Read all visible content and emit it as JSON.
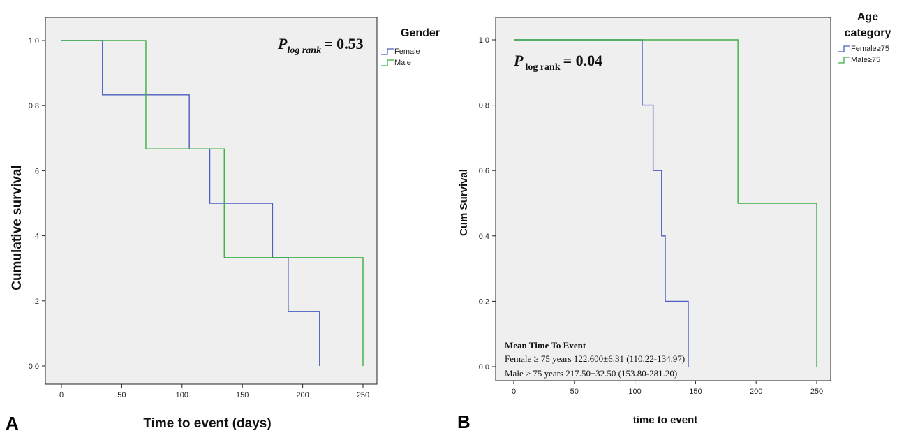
{
  "chart_data": [
    {
      "panel_label": "A",
      "type": "line",
      "step": true,
      "xlabel": "Time to event (days)",
      "ylabel": "Cumulative  survival",
      "xlim": [
        0,
        250
      ],
      "ylim": [
        0,
        1
      ],
      "x_ticks": [
        "0",
        "50",
        "100",
        "150",
        "200",
        "250"
      ],
      "y_ticks": [
        "0.0",
        ".2",
        ".4",
        ".6",
        "0.8",
        "1.0"
      ],
      "p_label": "P",
      "p_subscript": "log rank",
      "p_value": "= 0.53",
      "legend_title": "Gender",
      "legend_placement": "right",
      "grid": false,
      "series": [
        {
          "name": "Female",
          "color": "#4a5fbf",
          "x": [
            0,
            34,
            106,
            123,
            175,
            188,
            214
          ],
          "y": [
            1.0,
            0.833,
            0.667,
            0.5,
            0.333,
            0.167,
            0.0
          ]
        },
        {
          "name": "Male",
          "color": "#3cb043",
          "x": [
            0,
            70,
            135,
            250
          ],
          "y": [
            1.0,
            0.667,
            0.333,
            0.0
          ]
        }
      ]
    },
    {
      "panel_label": "B",
      "type": "line",
      "step": true,
      "xlabel": "time to event",
      "ylabel": "Cum Survival",
      "xlim": [
        0,
        250
      ],
      "ylim": [
        0,
        1
      ],
      "x_ticks": [
        "0",
        "50",
        "100",
        "150",
        "200",
        "250"
      ],
      "y_ticks": [
        "0.0",
        "0.2",
        "0.4",
        "0.6",
        "0.8",
        "1.0"
      ],
      "p_label": "P",
      "p_subscript": "log rank",
      "p_value": "= 0.04",
      "legend_title_line1": "Age",
      "legend_title_line2": "category",
      "legend_placement": "right",
      "grid": false,
      "series": [
        {
          "name": "Female≥75",
          "color": "#4a5fbf",
          "x": [
            0,
            106,
            115,
            122,
            125,
            144
          ],
          "y": [
            1.0,
            0.8,
            0.6,
            0.4,
            0.2,
            0.0
          ]
        },
        {
          "name": "Male≥75",
          "color": "#3cb043",
          "x": [
            0,
            185,
            250
          ],
          "y": [
            1.0,
            0.5,
            0.0
          ]
        }
      ],
      "annotation": {
        "heading": "Mean Time To Event",
        "line1": "Female ≥ 75 years  122.600±6.31 (110.22-134.97)",
        "line2": "Male ≥ 75 years 217.50±32.50 (153.80-281.20)"
      }
    }
  ]
}
